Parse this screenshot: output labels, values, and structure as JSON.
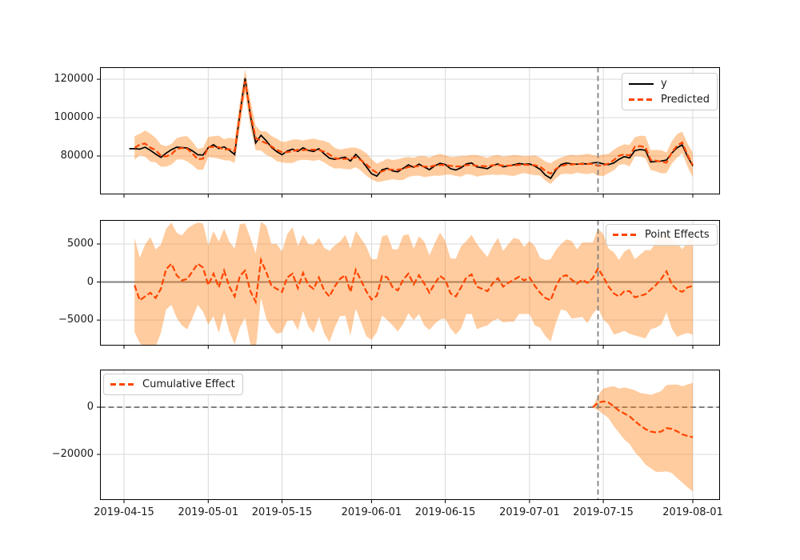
{
  "figure": {
    "background": "#ffffff"
  },
  "colors": {
    "observed_line": "#000000",
    "predicted_line": "#ff4500",
    "band_fill": "#ff7f0e",
    "band_alpha": 0.4,
    "grid": "#d9d9d9",
    "reference_gray": "#808080",
    "axis": "#000000"
  },
  "x_axis": {
    "tick_labels": [
      "2019-04-15",
      "2019-05-01",
      "2019-05-15",
      "2019-06-01",
      "2019-06-15",
      "2019-07-01",
      "2019-07-15",
      "2019-08-01"
    ],
    "tick_days": [
      0,
      16,
      30,
      47,
      61,
      77,
      91,
      108
    ]
  },
  "panels": [
    {
      "name": "original",
      "ylim": [
        60000,
        126300
      ],
      "yticks": [
        {
          "label": "120000",
          "value": 120000
        },
        {
          "label": "100000",
          "value": 100000
        },
        {
          "label": "80000",
          "value": 80000
        }
      ],
      "legend": [
        {
          "label": "y",
          "style": "solid"
        },
        {
          "label": "Predicted",
          "style": "dashed"
        }
      ],
      "legend_position": "top-right"
    },
    {
      "name": "pointwise",
      "ylim": [
        -8350,
        8150
      ],
      "yticks": [
        {
          "label": "5000",
          "value": 5000
        },
        {
          "label": "0",
          "value": 0
        },
        {
          "label": "−5000",
          "value": -5000
        }
      ],
      "legend": [
        {
          "label": "Point Effects",
          "style": "dashed"
        }
      ],
      "legend_position": "top-right",
      "zero_line": "solid"
    },
    {
      "name": "cumulative",
      "ylim": [
        -39300,
        15900
      ],
      "yticks": [
        {
          "label": "0",
          "value": 0
        },
        {
          "label": "−20000",
          "value": -20000
        }
      ],
      "legend": [
        {
          "label": "Cumulative Effect",
          "style": "dashed"
        }
      ],
      "legend_position": "top-left",
      "zero_line": "dashed"
    }
  ],
  "chart_data": {
    "type": "line",
    "title": "",
    "x_start_date": "2019-04-15",
    "n_days": 108,
    "intervention_day": 90,
    "grid": true,
    "observed_start_day": 1,
    "observed_y": [
      83800,
      83800,
      83600,
      84600,
      83000,
      81000,
      79300,
      81500,
      83300,
      84600,
      84400,
      84200,
      82700,
      80700,
      80500,
      84300,
      85900,
      83900,
      84800,
      83000,
      80800,
      102000,
      120500,
      101000,
      86800,
      90800,
      88000,
      84500,
      82300,
      80700,
      82600,
      83600,
      82400,
      84300,
      82900,
      82400,
      83800,
      81200,
      78900,
      78300,
      78900,
      79400,
      77400,
      80900,
      78000,
      74500,
      70800,
      69500,
      72800,
      73600,
      72200,
      71800,
      73600,
      75400,
      74100,
      75800,
      74300,
      72900,
      74900,
      76200,
      75600,
      73400,
      72700,
      73900,
      75900,
      76400,
      74300,
      73900,
      73400,
      75000,
      75900,
      74400,
      74900,
      75400,
      76100,
      75700,
      75900,
      74700,
      73100,
      70100,
      68400,
      72600,
      75600,
      76400,
      75900,
      75700,
      76100,
      75800,
      76400,
      76700,
      75900,
      75500,
      76400,
      78300,
      79700,
      79000,
      82800,
      83400,
      83000,
      76900,
      77200,
      77400,
      77900,
      81500,
      84300,
      85800,
      79800,
      74800
    ],
    "point_effects_start_day": 2,
    "point_effects": [
      -400,
      -2400,
      -1900,
      -1400,
      -2100,
      -900,
      1700,
      2400,
      900,
      200,
      400,
      1400,
      2400,
      1900,
      -400,
      1100,
      -700,
      1500,
      -600,
      -1900,
      800,
      1500,
      -1200,
      -2600,
      2900,
      1300,
      -500,
      -900,
      -1300,
      600,
      1100,
      -800,
      1200,
      -400,
      -900,
      600,
      -1100,
      -1900,
      -600,
      400,
      900,
      -1300,
      1600,
      200,
      -1200,
      -2300,
      -1800,
      800,
      600,
      -700,
      -1100,
      300,
      1100,
      -300,
      900,
      -200,
      -1400,
      -200,
      800,
      300,
      -1500,
      -1900,
      -700,
      600,
      1000,
      -600,
      -900,
      -1200,
      -200,
      500,
      -600,
      -100,
      300,
      700,
      200,
      600,
      -500,
      -1400,
      -2100,
      -2400,
      -600,
      700,
      900,
      300,
      -200,
      300,
      -100,
      500,
      1800,
      700,
      -600,
      -1500,
      -1900,
      -1200,
      -1200,
      -2000,
      -1800,
      -1600,
      -1000,
      -400,
      400,
      1400,
      -300,
      -1000,
      -1300,
      -700,
      -500
    ],
    "ci_halfwidth": [
      6200,
      5600,
      6800,
      7300,
      6400,
      5800,
      5300,
      5400,
      5600,
      5900,
      6600,
      6100,
      5400,
      5800,
      5200,
      5600,
      6000,
      5500,
      5900,
      6300,
      6800,
      6200,
      7000,
      6400,
      5000,
      6100,
      5500,
      5900,
      5300,
      5700,
      6100,
      5500,
      5000,
      5400,
      5800,
      5200,
      5600,
      6000,
      5400,
      4900,
      5300,
      5700,
      5100,
      5500,
      5900,
      5300,
      4800,
      5200,
      5600,
      5000,
      5400,
      5800,
      5200,
      4700,
      5100,
      5500,
      4900,
      5300,
      5700,
      5100,
      4600,
      5000,
      5400,
      4800,
      5200,
      5600,
      5000,
      4500,
      4900,
      5300,
      4700,
      5100,
      5500,
      4900,
      4400,
      4800,
      5200,
      4600,
      5000,
      5400,
      4800,
      4300,
      4700,
      5100,
      4500,
      4900,
      5300,
      4700,
      5200,
      5600,
      5000,
      5400,
      4800,
      5200,
      5600,
      5000,
      5400,
      5800,
      5200,
      5600,
      6000,
      5400,
      5800,
      6200,
      5600,
      6000,
      6400
    ],
    "cumulative_start_day": 89,
    "cumulative_effect": [
      0,
      1800,
      2500,
      1900,
      400,
      -1500,
      -2700,
      -3900,
      -5900,
      -7700,
      -9300,
      -10300,
      -10700,
      -10300,
      -8900,
      -9200,
      -10200,
      -11500,
      -12200,
      -12700
    ],
    "cumulative_ci_halfwidth": [
      0,
      3200,
      5400,
      6600,
      8500,
      9400,
      11000,
      11700,
      13100,
      13700,
      15000,
      15500,
      16700,
      17100,
      18300,
      18700,
      19800,
      20400,
      21800,
      23000
    ]
  }
}
